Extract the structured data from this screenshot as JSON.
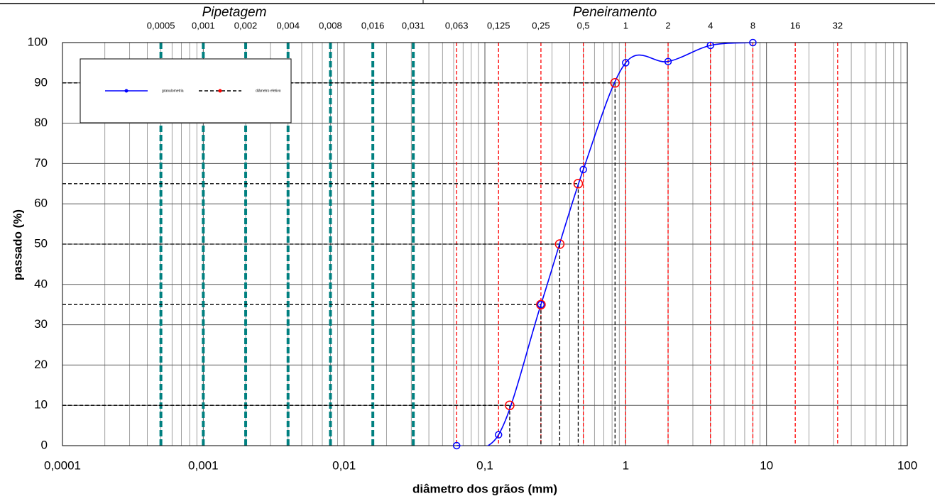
{
  "chart_data": {
    "type": "line",
    "xscale": "log",
    "xlabel": "diâmetro dos grãos  (mm)",
    "ylabel": "passado  (%)",
    "xlim": [
      0.0001,
      100
    ],
    "ylim": [
      0,
      100
    ],
    "xticks": [
      {
        "value": 0.0001,
        "label": "0,0001"
      },
      {
        "value": 0.001,
        "label": "0,001"
      },
      {
        "value": 0.01,
        "label": "0,01"
      },
      {
        "value": 0.1,
        "label": "0,1"
      },
      1,
      10,
      100
    ],
    "yticks": [
      0,
      10,
      20,
      30,
      40,
      50,
      60,
      70,
      80,
      90,
      100
    ],
    "grid": true,
    "legend": "upper left",
    "reference_lines": [
      {
        "name": "Pipetagem",
        "color": "#008080",
        "ticks": [
          {
            "value": 0.0005,
            "label": "0,0005"
          },
          {
            "value": 0.001,
            "label": "0,001"
          },
          {
            "value": 0.002,
            "label": "0,002"
          },
          {
            "value": 0.004,
            "label": "0,004"
          },
          {
            "value": 0.008,
            "label": "0,008"
          },
          {
            "value": 0.016,
            "label": "0,016"
          },
          {
            "value": 0.031,
            "label": "0,031"
          }
        ]
      },
      {
        "name": "Peneiramento",
        "color": "#ff0000",
        "ticks": [
          {
            "value": 0.063,
            "label": "0,063"
          },
          {
            "value": 0.125,
            "label": "0,125"
          },
          {
            "value": 0.25,
            "label": "0,25"
          },
          {
            "value": 0.5,
            "label": "0,5"
          },
          1,
          2,
          4,
          8,
          16,
          32
        ]
      }
    ],
    "series": [
      {
        "name": "granulometria",
        "color": "#0000ff",
        "smooth": true,
        "x": [
          0.063,
          0.125,
          0.25,
          0.5,
          1,
          2,
          4,
          8
        ],
        "values": [
          0,
          2.7,
          35,
          68.5,
          95,
          95.3,
          99.3,
          100
        ]
      },
      {
        "name": "diâmetro efetivo",
        "color": "#ff0000",
        "line_color": "#000000",
        "x": [
          0.15,
          0.25,
          0.34,
          0.46,
          0.84
        ],
        "values": [
          10,
          35,
          50,
          65,
          90
        ]
      }
    ]
  }
}
